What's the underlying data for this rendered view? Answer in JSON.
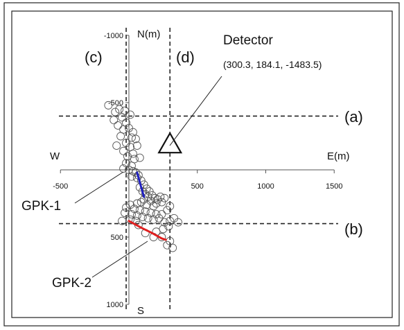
{
  "chart_data": {
    "type": "scatter",
    "axes": {
      "x_label_pos": "E(m)",
      "x_label_neg": "W",
      "y_label_up": "N(m)",
      "y_label_down": "S",
      "x_ticks": [
        {
          "value": -500,
          "label": "-500"
        },
        {
          "value": 500,
          "label": "500"
        },
        {
          "value": 1000,
          "label": "1000"
        },
        {
          "value": 1500,
          "label": "1500"
        }
      ],
      "y_ticks": [
        {
          "value": -1000,
          "label": "-1000"
        },
        {
          "value": -500,
          "label": "-500"
        },
        {
          "value": 500,
          "label": "500"
        },
        {
          "value": 1000,
          "label": "1000"
        }
      ],
      "xlim": [
        -500,
        1500
      ],
      "ylim": [
        -1000,
        1000
      ]
    },
    "section_lines": [
      {
        "id": "a",
        "label": "(a)",
        "orientation": "horizontal",
        "value": -400
      },
      {
        "id": "b",
        "label": "(b)",
        "orientation": "horizontal",
        "value": 400
      },
      {
        "id": "c",
        "label": "(c)",
        "orientation": "vertical",
        "value": -20
      },
      {
        "id": "d",
        "label": "(d)",
        "orientation": "vertical",
        "value": 300
      }
    ],
    "detector": {
      "label": "Detector",
      "coords": "(300.3, 184.1, -1483.5)",
      "x": 300,
      "y": -200
    },
    "wells": [
      {
        "name": "GPK-1",
        "color": "#2020c0",
        "path": [
          [
            60,
            20
          ],
          [
            90,
            130
          ],
          [
            110,
            200
          ]
        ]
      },
      {
        "name": "GPK-2",
        "color": "#e02020",
        "path": [
          [
            0,
            380
          ],
          [
            90,
            430
          ],
          [
            170,
            470
          ],
          [
            240,
            510
          ],
          [
            270,
            520
          ]
        ]
      }
    ],
    "events": [
      [
        -150,
        -480
      ],
      [
        -100,
        -430
      ],
      [
        -70,
        -450
      ],
      [
        -30,
        -440
      ],
      [
        -50,
        -390
      ],
      [
        -110,
        -370
      ],
      [
        -20,
        -350
      ],
      [
        10,
        -410
      ],
      [
        -80,
        -330
      ],
      [
        -40,
        -300
      ],
      [
        0,
        -310
      ],
      [
        30,
        -280
      ],
      [
        -60,
        -250
      ],
      [
        20,
        -240
      ],
      [
        50,
        -230
      ],
      [
        -20,
        -200
      ],
      [
        -90,
        -180
      ],
      [
        10,
        -170
      ],
      [
        60,
        -180
      ],
      [
        -40,
        -140
      ],
      [
        30,
        -120
      ],
      [
        -10,
        -100
      ],
      [
        40,
        -80
      ],
      [
        80,
        -90
      ],
      [
        -20,
        -50
      ],
      [
        20,
        -30
      ],
      [
        -40,
        -10
      ],
      [
        0,
        0
      ],
      [
        30,
        10
      ],
      [
        50,
        20
      ],
      [
        70,
        40
      ],
      [
        20,
        50
      ],
      [
        60,
        60
      ],
      [
        90,
        80
      ],
      [
        110,
        110
      ],
      [
        80,
        130
      ],
      [
        130,
        140
      ],
      [
        100,
        160
      ],
      [
        150,
        160
      ],
      [
        120,
        180
      ],
      [
        170,
        190
      ],
      [
        140,
        200
      ],
      [
        190,
        210
      ],
      [
        110,
        220
      ],
      [
        160,
        230
      ],
      [
        210,
        220
      ],
      [
        230,
        200
      ],
      [
        200,
        250
      ],
      [
        240,
        240
      ],
      [
        260,
        210
      ],
      [
        180,
        270
      ],
      [
        130,
        260
      ],
      [
        90,
        240
      ],
      [
        60,
        250
      ],
      [
        10,
        260
      ],
      [
        -20,
        280
      ],
      [
        40,
        290
      ],
      [
        80,
        300
      ],
      [
        120,
        310
      ],
      [
        160,
        320
      ],
      [
        200,
        330
      ],
      [
        240,
        330
      ],
      [
        280,
        300
      ],
      [
        300,
        270
      ],
      [
        220,
        360
      ],
      [
        180,
        370
      ],
      [
        140,
        360
      ],
      [
        100,
        350
      ],
      [
        60,
        340
      ],
      [
        20,
        330
      ],
      [
        -30,
        320
      ],
      [
        10,
        370
      ],
      [
        50,
        380
      ],
      [
        260,
        390
      ],
      [
        300,
        380
      ],
      [
        330,
        360
      ],
      [
        360,
        390
      ],
      [
        290,
        420
      ],
      [
        250,
        440
      ],
      [
        200,
        460
      ],
      [
        120,
        470
      ],
      [
        180,
        500
      ],
      [
        240,
        500
      ],
      [
        300,
        530
      ],
      [
        280,
        560
      ],
      [
        320,
        580
      ],
      [
        -50,
        380
      ],
      [
        70,
        410
      ]
    ]
  }
}
